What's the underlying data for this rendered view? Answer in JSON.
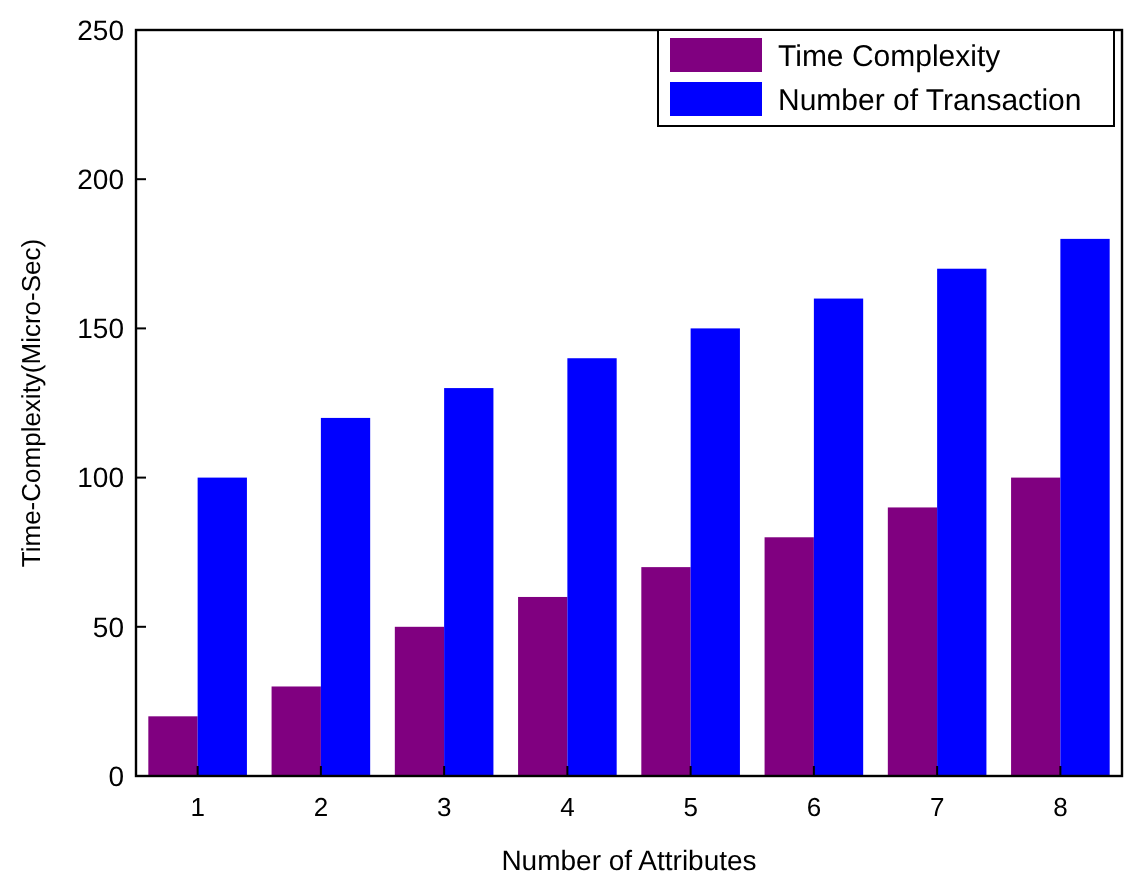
{
  "chart_data": {
    "type": "bar",
    "xlabel": "Number of Attributes",
    "ylabel": "Time-Complexity(Micro-Sec)",
    "categories": [
      "1",
      "2",
      "3",
      "4",
      "5",
      "6",
      "7",
      "8"
    ],
    "series": [
      {
        "name": "Time Complexity",
        "color": "#800080",
        "values": [
          20,
          30,
          50,
          60,
          70,
          80,
          90,
          100
        ]
      },
      {
        "name": "Number of Transaction",
        "color": "#0000ff",
        "values": [
          100,
          120,
          130,
          140,
          150,
          160,
          170,
          180
        ]
      }
    ],
    "ylim": [
      0,
      250
    ],
    "yticks": [
      0,
      50,
      100,
      150,
      200,
      250
    ],
    "grid": false,
    "legend": "top right"
  }
}
